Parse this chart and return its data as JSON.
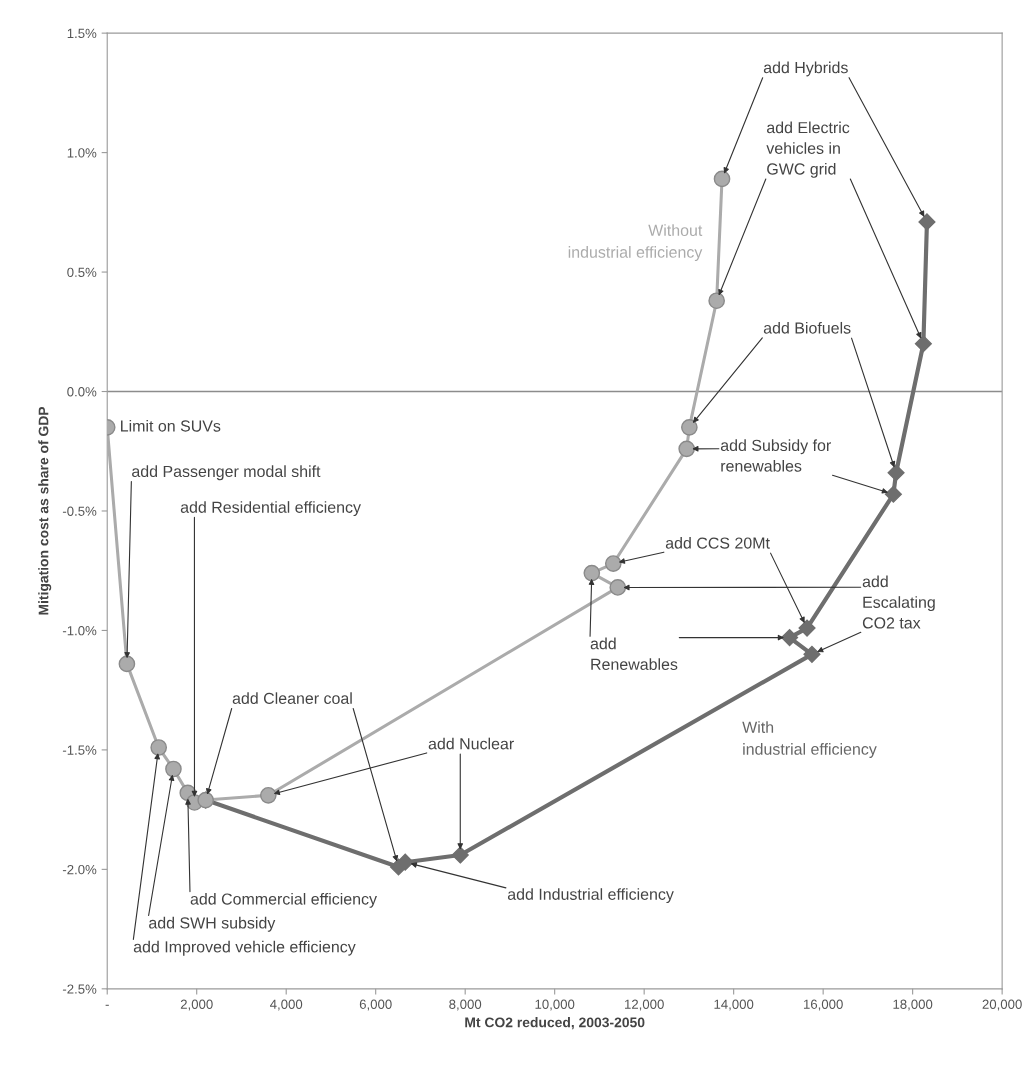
{
  "chart_data": {
    "type": "line",
    "xlabel": "Mt CO2 reduced, 2003-2050",
    "ylabel": "Mitigation cost as share of GDP",
    "series": [
      {
        "name": "With\nindustrial efficiency",
        "color": "#6e6e6e",
        "marker": "diamond",
        "x": [
          2200,
          6510,
          6660,
          7890,
          15750,
          15250,
          15640,
          17570,
          17630,
          18240,
          18320
        ],
        "values": [
          -1.71,
          -1.99,
          -1.97,
          -1.94,
          -1.1,
          -1.03,
          -0.99,
          -0.43,
          -0.34,
          0.2,
          0.71
        ]
      },
      {
        "name": "Without\nindustrial efficiency",
        "color": "#ababab",
        "marker": "circle",
        "x": [
          0,
          440,
          1150,
          1480,
          1800,
          1950,
          2200,
          3600,
          11410,
          10830,
          11310,
          12950,
          13010,
          13620,
          13740
        ],
        "values": [
          -0.15,
          -1.14,
          -1.49,
          -1.58,
          -1.68,
          -1.72,
          -1.71,
          -1.69,
          -0.82,
          -0.76,
          -0.72,
          -0.24,
          -0.15,
          0.38,
          0.89
        ]
      }
    ],
    "xlim": [
      0,
      20000
    ],
    "xticks": [
      {
        "value": 0,
        "label": "-"
      },
      {
        "value": 2000,
        "label": "2,000"
      },
      {
        "value": 4000,
        "label": "4,000"
      },
      {
        "value": 6000,
        "label": "6,000"
      },
      {
        "value": 8000,
        "label": "8,000"
      },
      {
        "value": 10000,
        "label": "10,000"
      },
      {
        "value": 12000,
        "label": "12,000"
      },
      {
        "value": 14000,
        "label": "14,000"
      },
      {
        "value": 16000,
        "label": "16,000"
      },
      {
        "value": 18000,
        "label": "18,000"
      },
      {
        "value": 20000,
        "label": "20,000"
      }
    ],
    "ylim": [
      -2.5,
      1.5
    ],
    "yticks": [
      {
        "value": -2.5,
        "label": "-2.5%"
      },
      {
        "value": -2.0,
        "label": "-2.0%"
      },
      {
        "value": -1.5,
        "label": "-1.5%"
      },
      {
        "value": -1.0,
        "label": "-1.0%"
      },
      {
        "value": -0.5,
        "label": "-0.5%"
      },
      {
        "value": 0.0,
        "label": "0.0%"
      },
      {
        "value": 0.5,
        "label": "0.5%"
      },
      {
        "value": 1.0,
        "label": "1.0%"
      },
      {
        "value": 1.5,
        "label": "1.5%"
      }
    ],
    "ref_lines": [
      {
        "axis": "y",
        "value": 0,
        "color": "#8c8c8c"
      }
    ],
    "grid": false,
    "legend": false,
    "annotations": [
      {
        "text": "Limit on SUVs",
        "x": 0,
        "y": -0.15
      },
      {
        "text": "add Passenger modal shift",
        "x": 440,
        "y": -1.14
      },
      {
        "text": "add Residential efficiency",
        "x": 1950,
        "y": -1.72
      },
      {
        "text": "add Cleaner coal",
        "x": 2200,
        "y": -1.71
      },
      {
        "text": "add Nuclear",
        "x": 7890,
        "y": -1.94
      },
      {
        "text": "add Industrial efficiency",
        "x": 6660,
        "y": -1.97
      },
      {
        "text": "add Commercial efficiency",
        "x": 1800,
        "y": -1.68
      },
      {
        "text": "add SWH subsidy",
        "x": 1480,
        "y": -1.58
      },
      {
        "text": "add Improved vehicle efficiency",
        "x": 1150,
        "y": -1.49
      },
      {
        "text": "add Hybrids",
        "x": 13740,
        "y": 0.89
      },
      {
        "text": "add Electric\nvehicles in\nGWC grid",
        "x": 13620,
        "y": 0.38
      },
      {
        "text": "add Biofuels",
        "x": 13010,
        "y": -0.15
      },
      {
        "text": "add Subsidy for\nrenewables",
        "x": 12950,
        "y": -0.24
      },
      {
        "text": "add CCS 20Mt",
        "x": 11310,
        "y": -0.72
      },
      {
        "text": "add\nRenewables",
        "x": 10830,
        "y": -0.76
      },
      {
        "text": "add\nEscalating\nCO2 tax",
        "x": 11410,
        "y": -0.82
      }
    ]
  }
}
